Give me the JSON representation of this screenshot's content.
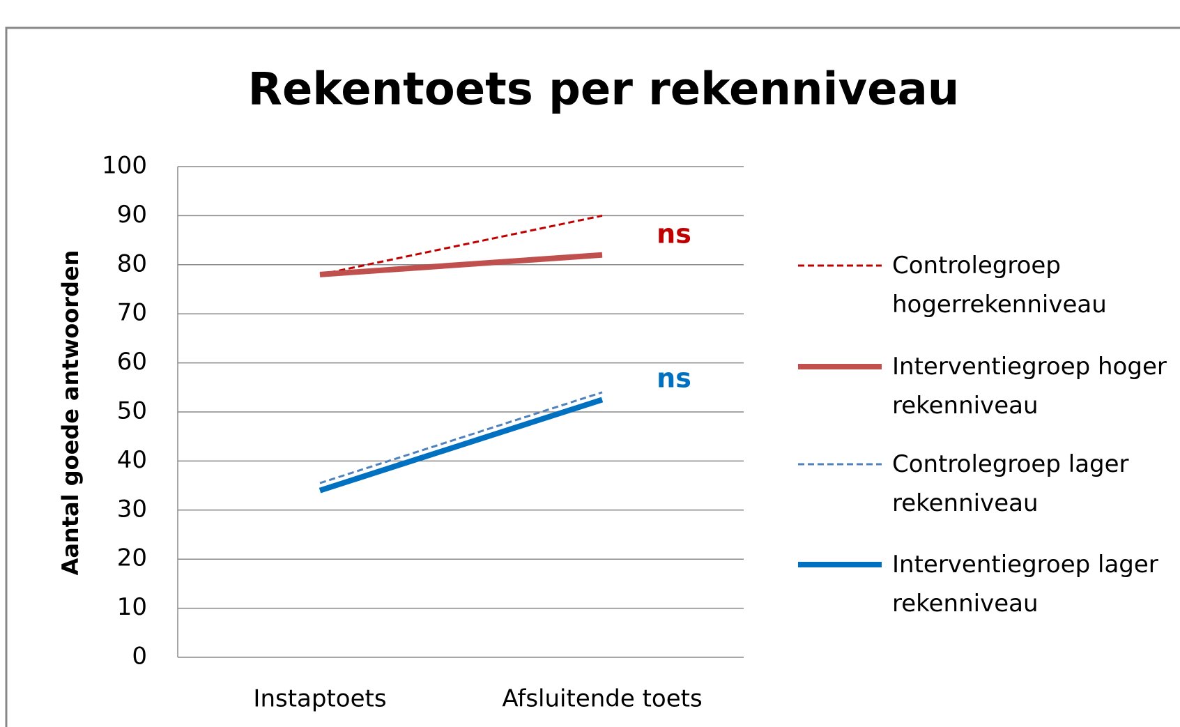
{
  "chart_data": {
    "type": "line",
    "title": "Rekentoets per rekenniveau",
    "y_label": "Aantal goede antwoorden",
    "categories": [
      "Instaptoets",
      "Afsluitende toets"
    ],
    "series": [
      {
        "name": "Controlegroep hogerrekenniveau",
        "color": "#c00000",
        "dashed": true,
        "values": [
          78,
          90
        ]
      },
      {
        "name": "Interventiegroep hoger rekenniveau",
        "color": "#c0504d",
        "dashed": false,
        "values": [
          78,
          82
        ]
      },
      {
        "name": "Controlegroep lager rekenniveau",
        "color": "#4f81bd",
        "dashed": true,
        "values": [
          35.5,
          54
        ]
      },
      {
        "name": "Interventiegroep lager rekenniveau",
        "color": "#0070c0",
        "dashed": false,
        "values": [
          34,
          52.5
        ]
      }
    ],
    "annotations": [
      {
        "text": "ns",
        "color": "#c00000"
      },
      {
        "text": "ns",
        "color": "#0070c0"
      }
    ],
    "ylim": [
      0,
      100
    ],
    "yticks": [
      0,
      10,
      20,
      30,
      40,
      50,
      60,
      70,
      80,
      90,
      100
    ],
    "grid": true,
    "legend": "right"
  }
}
